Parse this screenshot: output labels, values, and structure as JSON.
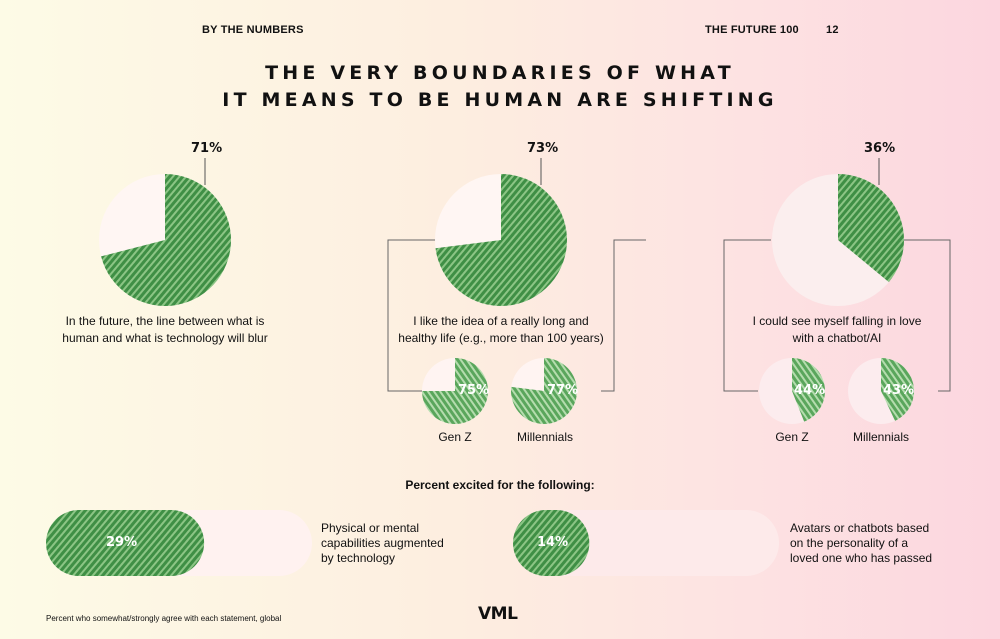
{
  "header": {
    "section": "BY THE NUMBERS",
    "report": "THE FUTURE 100",
    "page": "12"
  },
  "title": {
    "line1": "THE VERY BOUNDARIES OF WHAT",
    "line2": "IT MEANS TO BE HUMAN ARE SHIFTING"
  },
  "chart_data": [
    {
      "type": "pie",
      "title": "In the future, the line between what is human and what is technology will blur",
      "value_label": "71%",
      "values": [
        71
      ]
    },
    {
      "type": "pie",
      "title": "I like the idea of a really long and healthy life (e.g., more than 100 years)",
      "value_label": "73%",
      "values": [
        73
      ],
      "breakdown": [
        {
          "name": "Gen Z",
          "value": 75,
          "label": "75%"
        },
        {
          "name": "Millennials",
          "value": 77,
          "label": "77%"
        }
      ]
    },
    {
      "type": "pie",
      "title": "I could see myself falling in love with a chatbot/AI",
      "value_label": "36%",
      "values": [
        36
      ],
      "breakdown": [
        {
          "name": "Gen Z",
          "value": 44,
          "label": "44%"
        },
        {
          "name": "Millennials",
          "value": 43,
          "label": "43%"
        }
      ]
    },
    {
      "type": "bar",
      "title": "Percent excited for the following:",
      "categories": [
        "Physical or mental capabilities augmented by technology",
        "Avatars or chatbots based on the personality of a loved one who has passed"
      ],
      "values": [
        29,
        14
      ],
      "labels": [
        "29%",
        "14%"
      ]
    }
  ],
  "statements": {
    "s1": {
      "line1": "In the future, the line between what is",
      "line2": "human and what is technology will blur"
    },
    "s2": {
      "line1": "I like the idea of a really long and",
      "line2": "healthy life (e.g., more than 100 years)"
    },
    "s3": {
      "line1": "I could see myself falling in love",
      "line2": "with a chatbot/AI"
    }
  },
  "groups": {
    "genz": "Gen Z",
    "millennials": "Millennials"
  },
  "excited_title": "Percent excited for the following:",
  "pill_texts": {
    "p1": {
      "line1": "Physical or mental",
      "line2": "capabilities augmented",
      "line3": "by technology"
    },
    "p2": {
      "line1": "Avatars or chatbots based",
      "line2": "on the personality of a",
      "line3": "loved one who has passed"
    }
  },
  "footnote": "Percent who somewhat/strongly agree with each statement, global",
  "logo": "VML",
  "colors": {
    "green": "#4a9a4e",
    "light_green": "#a9d2a3",
    "pale": "#fff4f4"
  }
}
